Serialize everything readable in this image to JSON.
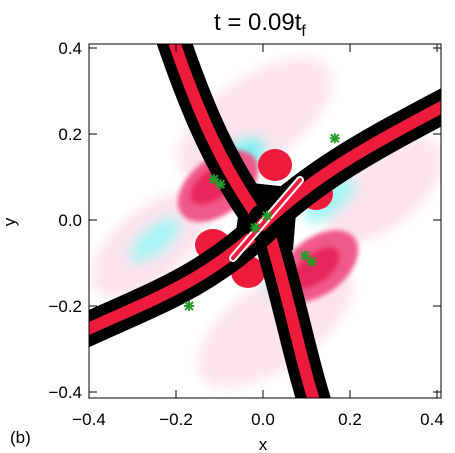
{
  "chart_data": {
    "type": "heatmap",
    "title_main": "t = 0.09t",
    "title_sub": "f",
    "panel_label": "(b)",
    "xlabel": "x",
    "ylabel": "y",
    "xlim": [
      -0.4,
      0.41
    ],
    "ylim": [
      -0.41,
      0.41
    ],
    "x_ticks": [
      -0.4,
      -0.2,
      0.0,
      0.2,
      0.4
    ],
    "x_tick_labels": [
      "−0.4",
      "−0.2",
      "0.0",
      "0.2",
      "0.4"
    ],
    "y_ticks": [
      -0.4,
      -0.2,
      0.0,
      0.2,
      0.4
    ],
    "y_tick_labels": [
      "−0.4",
      "−0.2",
      "0.0",
      "0.2",
      "0.4"
    ],
    "colors": {
      "positive": "#ee1c3c",
      "negative": "#00d8d8",
      "zero": "#ffffff",
      "strong_negative": "#000000",
      "marker": "#2a9a2a"
    },
    "markers": [
      {
        "x": -0.113,
        "y": 0.095
      },
      {
        "x": -0.098,
        "y": 0.083
      },
      {
        "x": 0.009,
        "y": 0.01
      },
      {
        "x": -0.018,
        "y": -0.018
      },
      {
        "x": 0.097,
        "y": -0.083
      },
      {
        "x": 0.112,
        "y": -0.097
      },
      {
        "x": 0.165,
        "y": 0.19
      },
      {
        "x": -0.17,
        "y": -0.2
      }
    ]
  }
}
